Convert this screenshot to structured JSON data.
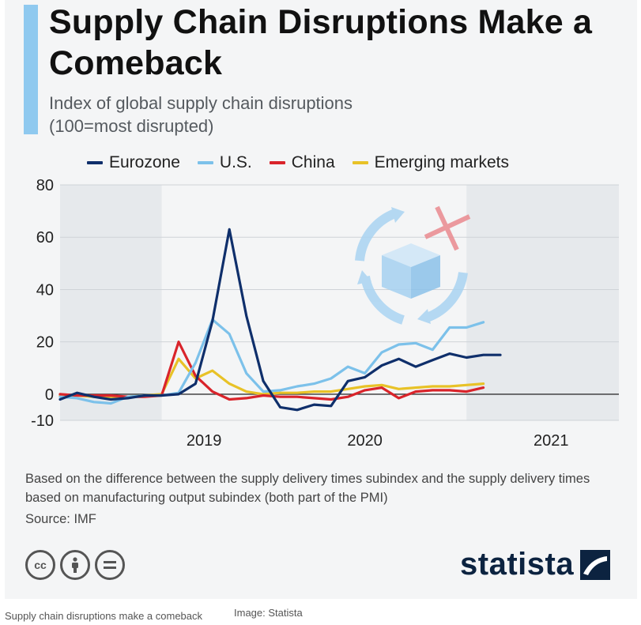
{
  "title": "Supply Chain Disruptions Make a Comeback",
  "subtitle_line1": "Index of global supply chain disruptions",
  "subtitle_line2": "(100=most disrupted)",
  "note": "Based on the difference between the supply delivery times subindex and the supply delivery times based on manufacturing output subindex (both part of the PMI)",
  "source": "Source: IMF",
  "logo_text": "statista",
  "license_icons": [
    "cc-icon",
    "by-person-icon",
    "nd-equals-icon"
  ],
  "caption": "Supply chain disruptions make a comeback",
  "image_credit": "Image: Statista",
  "colors": {
    "Eurozone": "#0f2f6b",
    "U.S.": "#7cc1ea",
    "China": "#d9242b",
    "Emerging markets": "#e8c227",
    "accent": "#8fc9ef",
    "brand": "#0c2340"
  },
  "chart_data": {
    "type": "line",
    "title": "Supply Chain Disruptions Make a Comeback",
    "subtitle": "Index of global supply chain disruptions (100=most disrupted)",
    "xlabel": "",
    "ylabel": "",
    "x_tick_labels": [
      "2019",
      "2020",
      "2021"
    ],
    "x_range": [
      "2018-10",
      "2021-07"
    ],
    "ylim": [
      -10,
      80
    ],
    "yticks": [
      80,
      60,
      40,
      20,
      0,
      -10
    ],
    "grid": "horizontal",
    "legend_position": "top",
    "shaded_periods": [
      [
        "2018-10",
        "2019-04"
      ],
      [
        "2020-10",
        "2021-07"
      ]
    ],
    "x": [
      "2018-10",
      "2018-11",
      "2018-12",
      "2019-01",
      "2019-02",
      "2019-03",
      "2019-04",
      "2019-05",
      "2019-06",
      "2019-07",
      "2019-08",
      "2019-09",
      "2019-10",
      "2019-11",
      "2019-12",
      "2020-01",
      "2020-02",
      "2020-03",
      "2020-04",
      "2020-05",
      "2020-06",
      "2020-07",
      "2020-08",
      "2020-09",
      "2020-10",
      "2020-11",
      "2020-12",
      "2021-01",
      "2021-02",
      "2021-03",
      "2021-04",
      "2021-05",
      "2021-06"
    ],
    "series": [
      {
        "name": "Eurozone",
        "values": [
          -2,
          0.5,
          -1,
          -2,
          -1.5,
          -0.5,
          -0.5,
          0,
          4,
          28,
          63,
          30,
          5,
          -5,
          -6,
          -4,
          -4.5,
          5,
          6.5,
          11,
          13.5,
          10.5,
          13,
          15.5,
          14,
          15,
          15,
          null,
          null,
          null,
          null,
          null,
          null
        ]
      },
      {
        "name": "U.S.",
        "values": [
          -1,
          -1.5,
          -3,
          -3.5,
          -1,
          -0.5,
          -0.5,
          0.5,
          12,
          28.5,
          23,
          8,
          1,
          1.5,
          3,
          4,
          6,
          10.5,
          8,
          16,
          19,
          19.5,
          17,
          25.5,
          25.5,
          27.5,
          null,
          null,
          null,
          null,
          null,
          null,
          null
        ]
      },
      {
        "name": "China",
        "values": [
          0,
          -0.5,
          -0.5,
          -0.5,
          -1,
          -1,
          -0.5,
          20,
          7,
          1,
          -2,
          -1.5,
          -0.5,
          -1,
          -1,
          -1.5,
          -2,
          -1,
          1.5,
          2.5,
          -1.5,
          1,
          1.5,
          1.5,
          1,
          2.5,
          null,
          null,
          null,
          null,
          null,
          null,
          null
        ]
      },
      {
        "name": "Emerging markets",
        "values": [
          -0.5,
          -0.5,
          -1,
          -1,
          -1,
          -0.5,
          0,
          13.5,
          6,
          9,
          4,
          1,
          0,
          0.5,
          0.5,
          1,
          1,
          2,
          3,
          3.5,
          2,
          2.5,
          3,
          3,
          3.5,
          4,
          null,
          null,
          null,
          null,
          null,
          null,
          null
        ]
      }
    ]
  }
}
